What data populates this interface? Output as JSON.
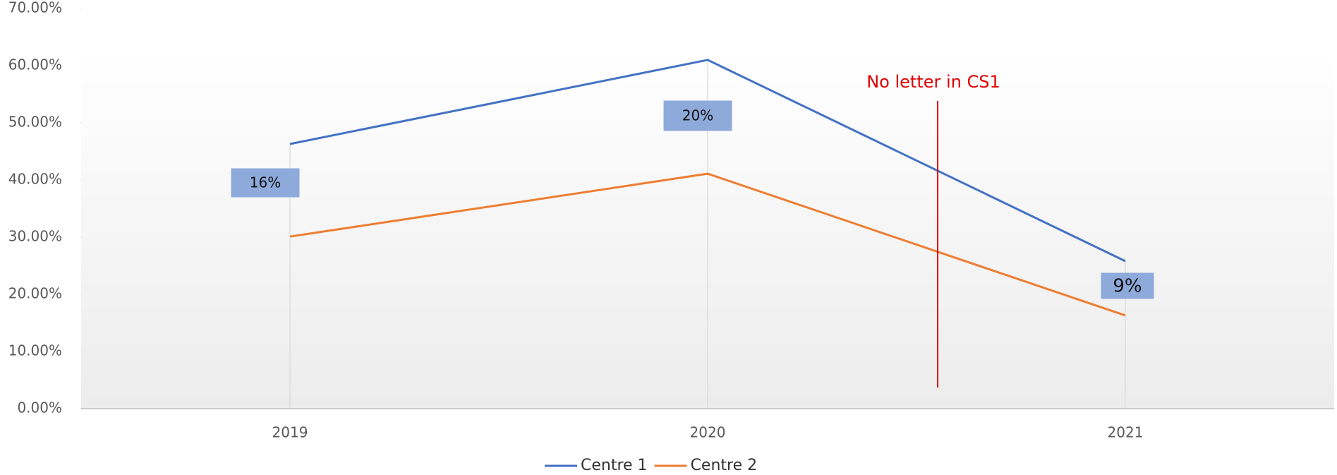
{
  "chart_data": {
    "type": "line",
    "categories": [
      "2019",
      "2020",
      "2021"
    ],
    "series": [
      {
        "name": "Centre 1",
        "color": "#4472c4",
        "values": [
          46.3,
          61.0,
          25.8
        ]
      },
      {
        "name": "Centre 2",
        "color": "#ed7d31",
        "values": [
          30.1,
          41.1,
          16.3
        ]
      }
    ],
    "ylim": [
      0,
      70
    ],
    "yticks": [
      {
        "value": 0,
        "label": "0.00%"
      },
      {
        "value": 10,
        "label": "10.00%"
      },
      {
        "value": 20,
        "label": "20.00%"
      },
      {
        "value": 30,
        "label": "30.00%"
      },
      {
        "value": 40,
        "label": "40.00%"
      },
      {
        "value": 50,
        "label": "50.00%"
      },
      {
        "value": 60,
        "label": "60.00%"
      },
      {
        "value": 70,
        "label": "70.00%"
      }
    ],
    "annotations": [
      "16%",
      "20%",
      "9%",
      "No letter in CS1"
    ],
    "legend": "bottom"
  }
}
